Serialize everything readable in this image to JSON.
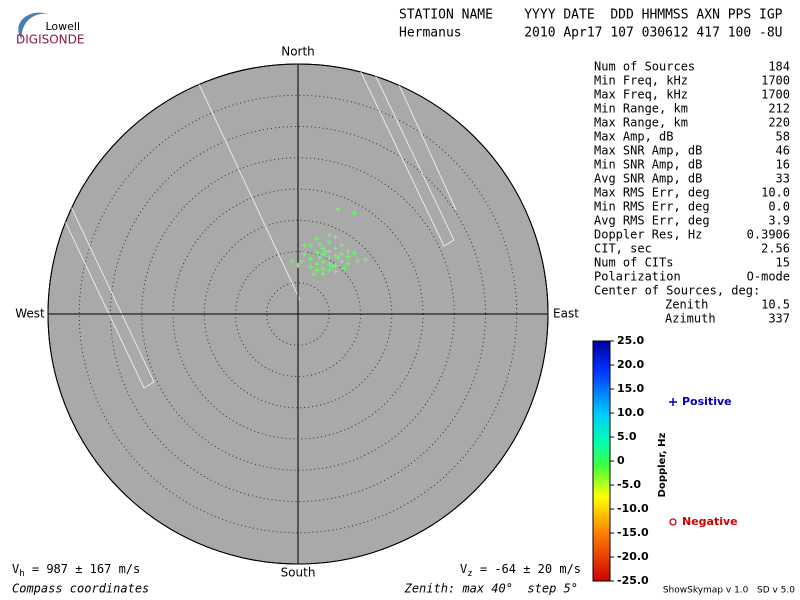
{
  "logo": {
    "brand": "Lowell",
    "product": "DIGISONDE"
  },
  "header": {
    "labels": "STATION NAME    YYYY DATE  DDD HHMMSS AXN PPS IGP",
    "values": "Hermanus        2010 Apr17 107 030612 417 100 -8U"
  },
  "stats": [
    {
      "label": "Num of Sources",
      "value": "184"
    },
    {
      "label": "Min Freq, kHz",
      "value": "1700"
    },
    {
      "label": "Max Freq, kHz",
      "value": "1700"
    },
    {
      "label": "Min Range, km",
      "value": "212"
    },
    {
      "label": "Max Range, km",
      "value": "220"
    },
    {
      "label": "Max Amp, dB",
      "value": "58"
    },
    {
      "label": "Max SNR Amp, dB",
      "value": "46"
    },
    {
      "label": "Min SNR Amp, dB",
      "value": "16"
    },
    {
      "label": "Avg SNR Amp, dB",
      "value": "33"
    },
    {
      "label": "Max RMS Err, deg",
      "value": "10.0"
    },
    {
      "label": "Min RMS Err, deg",
      "value": "0.0"
    },
    {
      "label": "Avg RMS Err, deg",
      "value": "3.9"
    },
    {
      "label": "Doppler Res, Hz",
      "value": "0.3906"
    },
    {
      "label": "CIT, sec",
      "value": "2.56"
    },
    {
      "label": "Num of CITs",
      "value": "15"
    },
    {
      "label": "Polarization",
      "value": "O-mode"
    }
  ],
  "center_title": "Center of Sources, deg:",
  "center": [
    {
      "label": "Zenith",
      "value": "10.5"
    },
    {
      "label": "Azimuth",
      "value": "337"
    }
  ],
  "chart_data": {
    "type": "skymap",
    "directions": {
      "north": "North",
      "south": "South",
      "west": "West",
      "east": "East"
    },
    "rlim": [
      0,
      40
    ],
    "rticks": [
      5,
      10,
      15,
      20,
      25,
      30,
      35,
      40
    ],
    "sources": {
      "color": "#66ff66",
      "x": [
        6.4,
        9,
        5,
        3,
        6,
        2,
        1,
        4,
        5,
        6,
        7,
        8,
        3,
        4,
        5,
        6,
        7,
        8,
        9,
        10.8,
        -1,
        0.5,
        2,
        3,
        4,
        5,
        6,
        7,
        8,
        2,
        3,
        4,
        5,
        6,
        4,
        2.5,
        5.5,
        7.4,
        3.5,
        4.5,
        6.5,
        1,
        0,
        9.5,
        5,
        3.5
      ],
      "y": [
        16.8,
        16.2,
        12.6,
        12,
        12.3,
        11,
        11,
        10.5,
        10,
        10.5,
        11,
        10,
        9.8,
        9.5,
        9,
        9.3,
        9.6,
        9.2,
        9.8,
        8.7,
        8.5,
        8.4,
        8.8,
        8,
        8.3,
        8,
        7.8,
        8.4,
        8,
        7.5,
        7,
        7.2,
        7,
        6.8,
        6.4,
        6.4,
        7.6,
        7.3,
        9,
        10,
        9,
        9.6,
        7.8,
        8.5,
        11.5,
        11.2
      ]
    },
    "colorbar": {
      "label": "Doppler, Hz",
      "ylim": [
        -25,
        25
      ],
      "yticks": [
        {
          "value": 25,
          "label": "25.0"
        },
        {
          "value": 20,
          "label": "20.0"
        },
        {
          "value": 15,
          "label": "15.0"
        },
        {
          "value": 10,
          "label": "10.0"
        },
        {
          "value": 5,
          "label": "5.0"
        },
        0,
        {
          "value": -5,
          "label": "-5.0"
        },
        {
          "value": -10,
          "label": "-10.0"
        },
        {
          "value": -15,
          "label": "-15.0"
        },
        {
          "value": -20,
          "label": "-20.0"
        },
        {
          "value": -25,
          "label": "-25.0"
        }
      ]
    },
    "legend": {
      "positive": "Positive",
      "negative": "Negative"
    },
    "vh": {
      "symbol": "V",
      "sub": "h",
      "text": " = 987 ± 167 m/s"
    },
    "vz": {
      "symbol": "V",
      "sub": "z",
      "text": " = -64 ± 20 m/s"
    },
    "coord_note": "Compass coordinates",
    "zenith_note": "Zenith: max 40°  step 5°",
    "version": "ShowSkymap v 1.0   SD v 5.0"
  }
}
